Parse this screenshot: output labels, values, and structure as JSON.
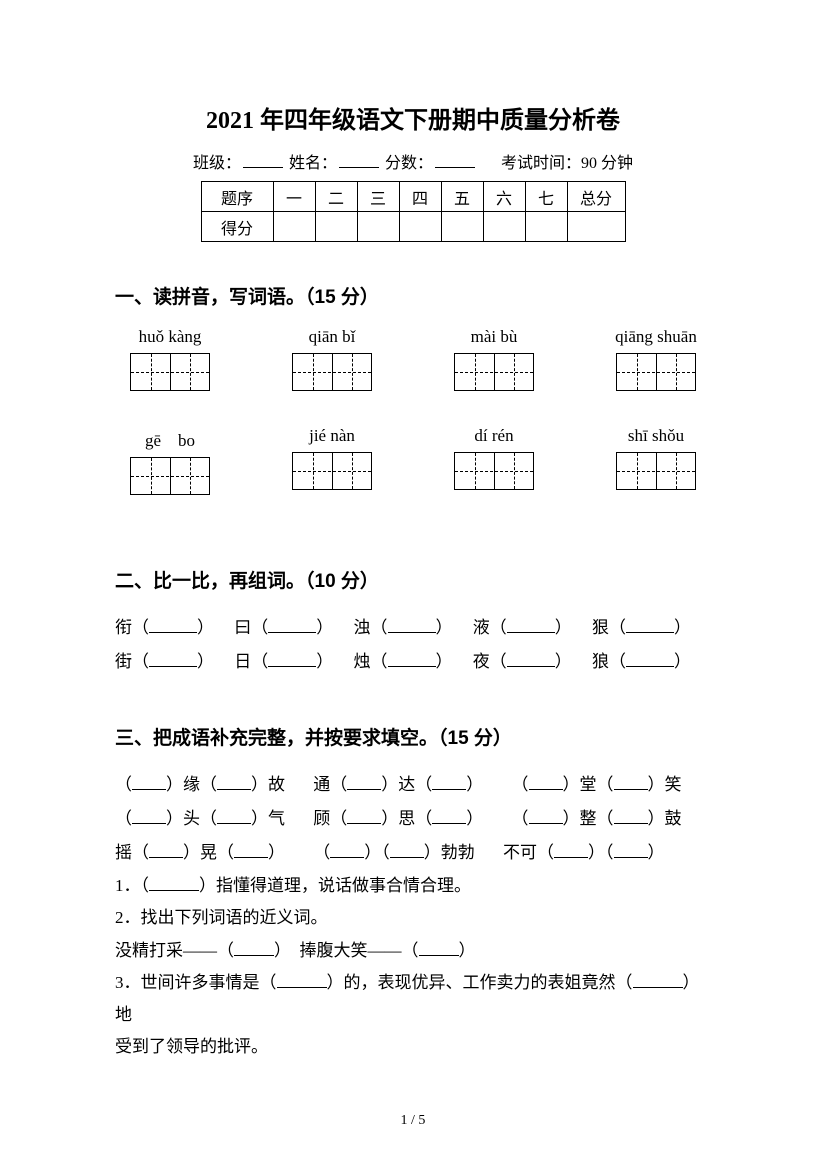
{
  "title": "2021 年四年级语文下册期中质量分析卷",
  "header": {
    "class_label": "班级：",
    "name_label": "姓名：",
    "score_label": "分数：",
    "exam_time": "考试时间：90 分钟"
  },
  "score_table": {
    "row_hdr": "题序",
    "cols": [
      "一",
      "二",
      "三",
      "四",
      "五",
      "六",
      "七"
    ],
    "total": "总分",
    "score_hdr": "得分"
  },
  "s1": {
    "heading": "一、读拼音，写词语。（15 分）",
    "row1": [
      "huǒ kàng",
      "qiān bǐ",
      "mài bù",
      "qiāng shuān"
    ],
    "row2": [
      "gē　bo",
      "jié nàn",
      "dí rén",
      "shī shǒu"
    ]
  },
  "s2": {
    "heading": "二、比一比，再组词。（10 分）",
    "line1": [
      "衔（",
      "）",
      "曰（",
      "）",
      "浊（",
      "）",
      "液（",
      "）",
      "狠（",
      "）"
    ],
    "line2": [
      "街（",
      "）",
      "日（",
      "）",
      "烛（",
      "）",
      "夜（",
      "）",
      "狼（",
      "）"
    ]
  },
  "s3": {
    "heading": "三、把成语补充完整，并按要求填空。（15 分）",
    "idioms": {
      "r1": [
        "（",
        "）缘（",
        "）故",
        "通（",
        "）达（",
        "）",
        "（",
        "）堂（",
        "）笑"
      ],
      "r2": [
        "（",
        "）头（",
        "）气",
        "顾（",
        "）思（",
        "）",
        "（",
        "）整（",
        "）鼓"
      ],
      "r3": [
        "摇（",
        "）晃（",
        "）",
        "（",
        "）（",
        "）勃勃",
        "不可（",
        "）（",
        "）"
      ]
    },
    "q1": "1．（",
    "q1b": "）指懂得道理，说话做事合情合理。",
    "q2": "2．找出下列词语的近义词。",
    "q2a": "没精打采——（",
    "q2b": "）　捧腹大笑——（",
    "q2c": "）",
    "q3a": "3．世间许多事情是（",
    "q3b": "）的，表现优异、工作卖力的表姐竟然（",
    "q3c": "）地",
    "q3d": "受到了领导的批评。"
  },
  "footer": "1 / 5"
}
